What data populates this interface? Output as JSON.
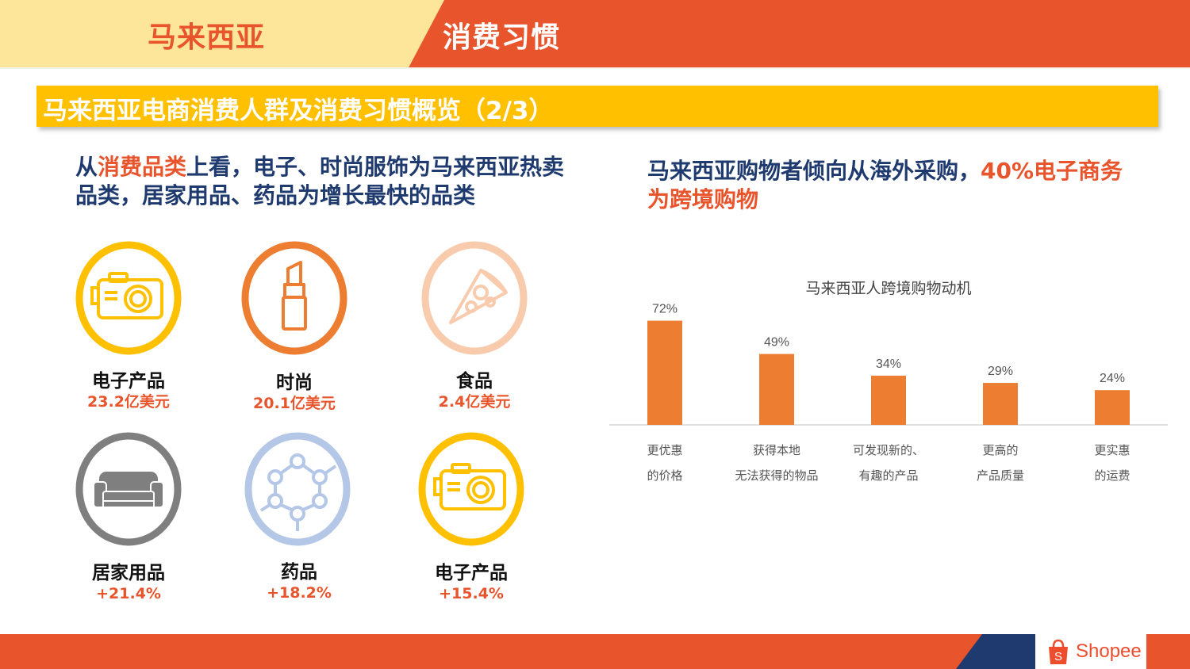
{
  "header": {
    "country": "马来西亚",
    "topic": "消费习惯"
  },
  "banner": {
    "title": "马来西亚电商消费人群及消费习惯概览（2/3）"
  },
  "left_heading": {
    "part1": "从",
    "highlight": "消费品类",
    "part2": "上看，电子、时尚服饰为马来西亚热卖品类，居家用品、药品为增长最快的品类"
  },
  "categories": [
    {
      "name": "电子产品",
      "value": "23.2亿美元",
      "icon": "camera-icon",
      "color": "#ffc000"
    },
    {
      "name": "时尚",
      "value": "20.1亿美元",
      "icon": "lipstick-icon",
      "color": "#ed7d31"
    },
    {
      "name": "食品",
      "value": "2.4亿美元",
      "icon": "pizza-icon",
      "color": "#f8cbad"
    },
    {
      "name": "居家用品",
      "value": "+21.4%",
      "icon": "sofa-icon",
      "color": "#7f7f7f"
    },
    {
      "name": "药品",
      "value": "+18.2%",
      "icon": "molecule-icon",
      "color": "#b4c7e7"
    },
    {
      "name": "电子产品",
      "value": "+15.4%",
      "icon": "camera-icon",
      "color": "#ffc000"
    }
  ],
  "right_heading": {
    "part1": "马来西亚购物者倾向从海外采购，",
    "highlight": "40%电子商务为跨境购物"
  },
  "chart_data": {
    "type": "bar",
    "title": "马来西亚人跨境购物动机",
    "categories": [
      [
        "更优惠",
        "的价格"
      ],
      [
        "获得本地",
        "无法获得的物品"
      ],
      [
        "可发现新的、",
        "有趣的产品"
      ],
      [
        "更高的",
        "产品质量"
      ],
      [
        "更实惠",
        "的运费"
      ]
    ],
    "values": [
      72,
      49,
      34,
      29,
      24
    ],
    "value_labels": [
      "72%",
      "49%",
      "34%",
      "29%",
      "24%"
    ],
    "ylim": [
      0,
      80
    ],
    "bar_color": "#ed7d31",
    "grid": false
  },
  "footer": {
    "brand": "Shopee"
  }
}
